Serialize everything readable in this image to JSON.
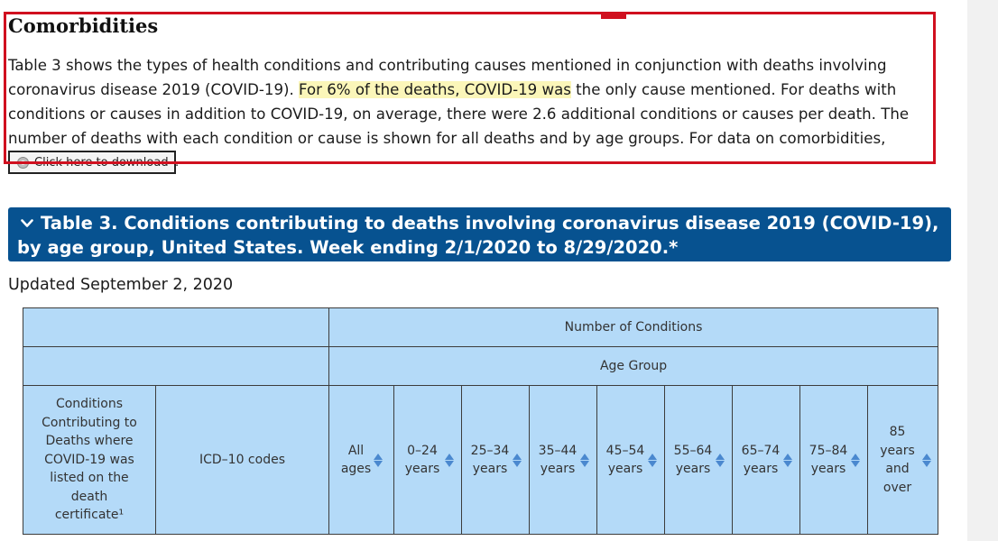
{
  "section": {
    "heading": "Comorbidities",
    "para_pre": "Table 3 shows the types of health conditions and contributing causes mentioned in conjunction with deaths involving coronavirus disease 2019 (COVID-19). ",
    "para_highlight": "For 6% of the deaths, COVID-19 was",
    "para_post": " the only cause mentioned. For deaths with conditions or causes in addition to COVID-19, on average, there were 2.6 additional conditions or causes per death. The number of deaths with each condition or cause is shown for all deaths and by age groups. For data on comorbidities,",
    "download_label": "Click here to download",
    "after_button": "."
  },
  "accordion": {
    "icon": "chevron-down-icon",
    "title": "Table 3. Conditions contributing to deaths involving coronavirus disease 2019 (COVID-19), by age group, United States. Week ending 2/1/2020 to 8/29/2020.*"
  },
  "updated": "Updated September 2, 2020",
  "table": {
    "header_group1": "Number of Conditions",
    "header_group2": "Age Group",
    "col_conditions": "Conditions Contributing to Deaths where COVID-19 was listed on the death certificate¹",
    "col_icd": "ICD–10 codes",
    "age_columns": [
      "All ages",
      "0–24 years",
      "25–34 years",
      "35–44 years",
      "45–54 years",
      "55–64 years",
      "65–74 years",
      "75–84 years",
      "85 years and over"
    ]
  },
  "colors": {
    "accordion_bg": "#075290",
    "table_header_bg": "#b4daf8",
    "highlight": "#fbf6b9",
    "annotation_red": "#d0101f",
    "sort_icon": "#4a88cf"
  }
}
